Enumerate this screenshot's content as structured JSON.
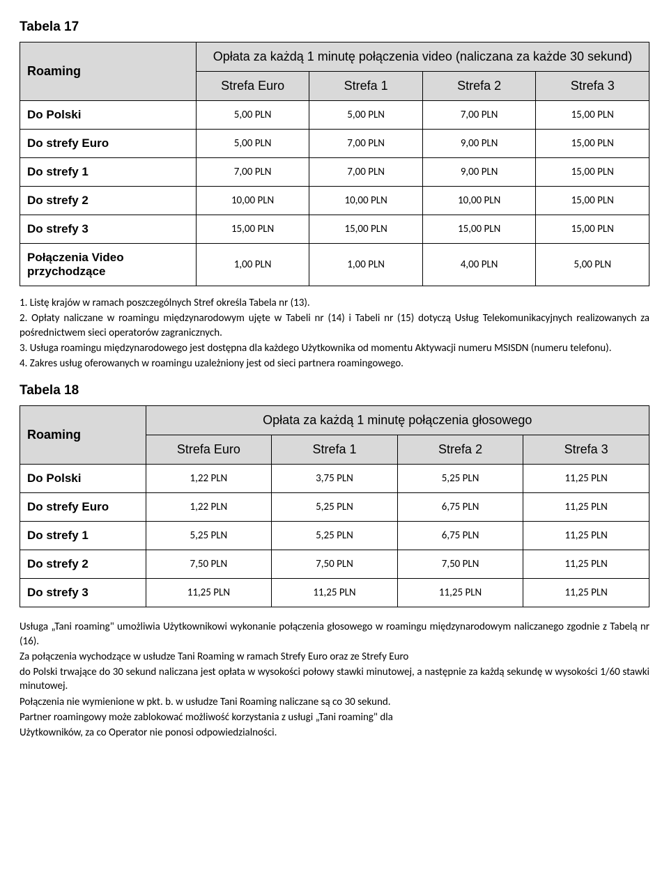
{
  "table17": {
    "label": "Tabela 17",
    "roaming_label": "Roaming",
    "header_title": "Opłata za każdą 1 minutę połączenia video (naliczana za każde 30 sekund)",
    "zones": [
      "Strefa Euro",
      "Strefa 1",
      "Strefa 2",
      "Strefa 3"
    ],
    "rows": [
      {
        "label": "Do Polski",
        "vals": [
          "5,00 PLN",
          "5,00 PLN",
          "7,00 PLN",
          "15,00 PLN"
        ]
      },
      {
        "label": "Do strefy Euro",
        "vals": [
          "5,00 PLN",
          "7,00 PLN",
          "9,00 PLN",
          "15,00 PLN"
        ]
      },
      {
        "label": "Do strefy 1",
        "vals": [
          "7,00 PLN",
          "7,00 PLN",
          "9,00 PLN",
          "15,00 PLN"
        ]
      },
      {
        "label": "Do strefy 2",
        "vals": [
          "10,00 PLN",
          "10,00 PLN",
          "10,00 PLN",
          "15,00 PLN"
        ]
      },
      {
        "label": "Do strefy 3",
        "vals": [
          "15,00 PLN",
          "15,00 PLN",
          "15,00 PLN",
          "15,00 PLN"
        ]
      },
      {
        "label": "Połączenia Video przychodzące",
        "vals": [
          "1,00 PLN",
          "1,00 PLN",
          "4,00 PLN",
          "5,00 PLN"
        ]
      }
    ],
    "col_widths_pct": [
      28,
      18,
      18,
      18,
      18
    ]
  },
  "notes17": [
    "1. Listę krajów w ramach poszczególnych Stref określa Tabela nr (13).",
    "2. Opłaty naliczane w roamingu międzynarodowym ujęte w Tabeli nr (14) i Tabeli nr (15) dotyczą Usług Telekomunikacyjnych realizowanych za pośrednictwem sieci operatorów zagranicznych.",
    "3. Usługa roamingu międzynarodowego jest dostępna dla każdego Użytkownika od momentu Aktywacji numeru MSISDN (numeru telefonu).",
    "4. Zakres usług oferowanych w roamingu uzależniony jest od sieci partnera roamingowego."
  ],
  "table18": {
    "label": "Tabela 18",
    "roaming_label": "Roaming",
    "header_title": "Opłata za każdą 1 minutę połączenia głosowego",
    "zones": [
      "Strefa Euro",
      "Strefa 1",
      "Strefa 2",
      "Strefa 3"
    ],
    "rows": [
      {
        "label": "Do Polski",
        "vals": [
          "1,22 PLN",
          "3,75 PLN",
          "5,25 PLN",
          "11,25 PLN"
        ]
      },
      {
        "label": "Do strefy Euro",
        "vals": [
          "1,22 PLN",
          "5,25 PLN",
          "6,75 PLN",
          "11,25 PLN"
        ]
      },
      {
        "label": "Do strefy 1",
        "vals": [
          "5,25 PLN",
          "5,25 PLN",
          "6,75 PLN",
          "11,25 PLN"
        ]
      },
      {
        "label": "Do strefy 2",
        "vals": [
          "7,50 PLN",
          "7,50 PLN",
          "7,50 PLN",
          "11,25 PLN"
        ]
      },
      {
        "label": "Do strefy 3",
        "vals": [
          "11,25 PLN",
          "11,25 PLN",
          "11,25 PLN",
          "11,25 PLN"
        ]
      }
    ],
    "col_widths_pct": [
      20,
      20,
      20,
      20,
      20
    ]
  },
  "after18": [
    "Usługa „Tani roaming\" umożliwia Użytkownikowi wykonanie połączenia głosowego w roamingu międzynarodowym naliczanego zgodnie z Tabelą nr (16).",
    "Za połączenia wychodzące w usłudze Tani Roaming w ramach Strefy Euro oraz ze Strefy Euro",
    "do Polski trwające do 30 sekund naliczana jest opłata w wysokości połowy stawki minutowej, a następnie za każdą sekundę w wysokości 1/60 stawki minutowej.",
    "Połączenia nie wymienione w pkt. b. w usłudze Tani Roaming naliczane są co 30 sekund.",
    "Partner roamingowy może zablokować możliwość korzystania z usługi „Tani roaming\" dla",
    "Użytkowników, za co Operator nie ponosi odpowiedzialności."
  ],
  "colors": {
    "header_bg": "#d9d9d9",
    "border": "#000000",
    "text": "#000000",
    "page_bg": "#ffffff"
  },
  "fonts": {
    "heading_family": "Trebuchet MS / Arial Narrow",
    "body_family": "Calibri",
    "heading_size_pt": 14,
    "body_size_pt": 11
  }
}
